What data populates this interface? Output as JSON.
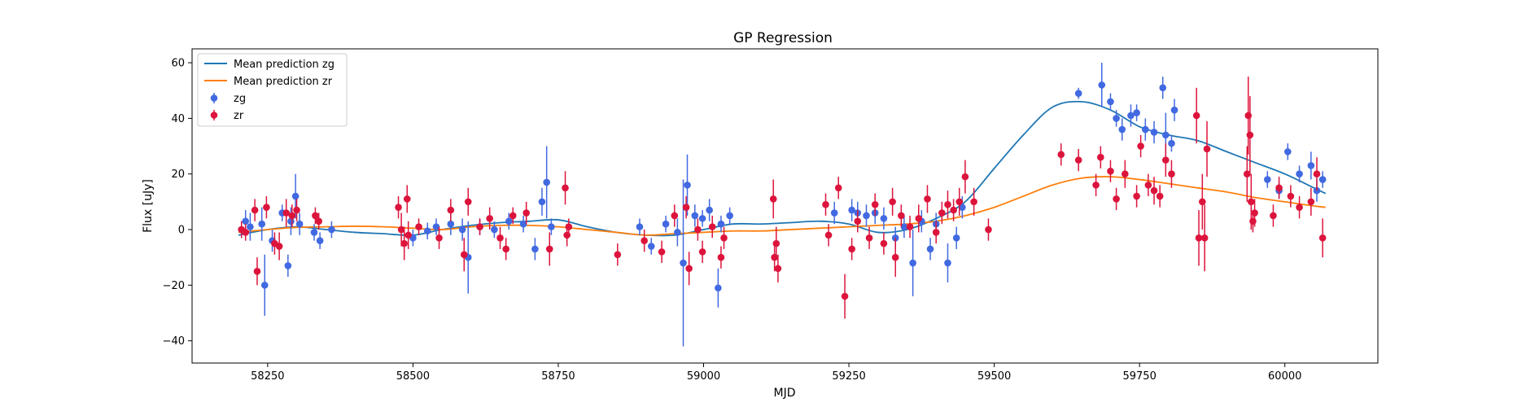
{
  "chart_data": {
    "type": "scatter",
    "title": "GP Regression",
    "xlabel": "MJD",
    "ylabel": "Flux [uJy]",
    "xlim": [
      58120,
      60160
    ],
    "ylim": [
      -48,
      65
    ],
    "x_ticks": [
      58250,
      58500,
      58750,
      59000,
      59250,
      59500,
      59750,
      60000
    ],
    "y_ticks": [
      -40,
      -20,
      0,
      20,
      40,
      60
    ],
    "grid": false,
    "legend": {
      "position": "top-left",
      "entries": [
        "Mean prediction zg",
        "Mean prediction zr",
        "zg",
        "zr"
      ]
    },
    "colors": {
      "zg_points": "#4169e1",
      "zr_points": "#dc143c",
      "zg_line": "#1f77b4",
      "zr_line": "#ff7f0e"
    },
    "lines": [
      {
        "name": "Mean prediction zg",
        "x": [
          58200,
          58250,
          58300,
          58350,
          58400,
          58450,
          58500,
          58550,
          58600,
          58650,
          58700,
          58750,
          58800,
          58850,
          58900,
          58950,
          59000,
          59050,
          59100,
          59150,
          59200,
          59250,
          59300,
          59350,
          59400,
          59450,
          59500,
          59550,
          59600,
          59650,
          59700,
          59750,
          59800,
          59850,
          59900,
          59950,
          60000,
          60050,
          60070
        ],
        "y": [
          -2,
          0,
          1,
          0,
          -1,
          -1.5,
          -2,
          0,
          1.5,
          2.5,
          3,
          3.5,
          1,
          -1,
          -2,
          -2,
          0,
          2,
          2,
          2.5,
          3,
          2,
          -1,
          0,
          4,
          10,
          22,
          34,
          44,
          46,
          43,
          37,
          34,
          32,
          28,
          24,
          20,
          15,
          13
        ]
      },
      {
        "name": "Mean prediction zr",
        "x": [
          58200,
          58250,
          58300,
          58350,
          58400,
          58450,
          58500,
          58550,
          58600,
          58650,
          58700,
          58750,
          58800,
          58850,
          58900,
          58950,
          59000,
          59050,
          59100,
          59150,
          59200,
          59250,
          59300,
          59350,
          59400,
          59450,
          59500,
          59550,
          59600,
          59650,
          59700,
          59750,
          59800,
          59850,
          59900,
          59950,
          60000,
          60050,
          60070
        ],
        "y": [
          -1,
          0,
          0.8,
          1,
          1.2,
          1,
          0.5,
          0,
          1,
          1.5,
          1.5,
          1,
          0,
          -1,
          -2,
          -1.5,
          -1,
          -0.5,
          -0.5,
          0,
          0.5,
          1,
          1.5,
          2,
          3,
          5,
          8,
          12,
          16,
          18.5,
          19,
          18,
          16.5,
          15,
          13.5,
          11.5,
          10,
          8.5,
          8
        ]
      }
    ],
    "series": [
      {
        "name": "zg",
        "points": [
          [
            58205,
            0,
            3
          ],
          [
            58212,
            3,
            4
          ],
          [
            58220,
            1,
            5
          ],
          [
            58240,
            2,
            6
          ],
          [
            58245,
            -20,
            11
          ],
          [
            58258,
            -4,
            4
          ],
          [
            58275,
            6,
            3
          ],
          [
            58285,
            -13,
            4
          ],
          [
            58290,
            3,
            5
          ],
          [
            58298,
            12,
            8
          ],
          [
            58305,
            2,
            4
          ],
          [
            58330,
            -1,
            3
          ],
          [
            58340,
            -4,
            3
          ],
          [
            58360,
            0,
            3
          ],
          [
            58500,
            -3,
            3
          ],
          [
            58525,
            -0.5,
            3
          ],
          [
            58540,
            1,
            3
          ],
          [
            58565,
            2,
            4
          ],
          [
            58585,
            0,
            4
          ],
          [
            58595,
            -10,
            13
          ],
          [
            58615,
            1,
            3
          ],
          [
            58640,
            0,
            3
          ],
          [
            58665,
            3,
            3
          ],
          [
            58690,
            2,
            3
          ],
          [
            58710,
            -7,
            4
          ],
          [
            58722,
            10,
            5
          ],
          [
            58730,
            17,
            13
          ],
          [
            58738,
            1,
            3
          ],
          [
            58890,
            1,
            3
          ],
          [
            58910,
            -6,
            3
          ],
          [
            58935,
            2,
            3
          ],
          [
            58955,
            -1,
            5
          ],
          [
            58965,
            -12,
            30
          ],
          [
            58972,
            16,
            11
          ],
          [
            58985,
            5,
            4
          ],
          [
            58998,
            4,
            3
          ],
          [
            59010,
            7,
            4
          ],
          [
            59025,
            -21,
            7
          ],
          [
            59030,
            2,
            3
          ],
          [
            59045,
            5,
            3
          ],
          [
            59225,
            6,
            4
          ],
          [
            59255,
            7,
            4
          ],
          [
            59265,
            6,
            4
          ],
          [
            59280,
            5,
            4
          ],
          [
            59295,
            6,
            4
          ],
          [
            59310,
            4,
            4
          ],
          [
            59330,
            -3,
            4
          ],
          [
            59345,
            1,
            4
          ],
          [
            59360,
            -12,
            12
          ],
          [
            59375,
            3,
            4
          ],
          [
            59390,
            -7,
            4
          ],
          [
            59400,
            2,
            4
          ],
          [
            59420,
            -12,
            7
          ],
          [
            59435,
            -3,
            4
          ],
          [
            59445,
            8,
            4
          ],
          [
            59645,
            49,
            2
          ],
          [
            59685,
            52,
            8
          ],
          [
            59700,
            46,
            3
          ],
          [
            59710,
            40,
            3
          ],
          [
            59720,
            36,
            4
          ],
          [
            59735,
            41,
            4
          ],
          [
            59745,
            42,
            3
          ],
          [
            59760,
            36,
            4
          ],
          [
            59775,
            35,
            4
          ],
          [
            59790,
            51,
            4
          ],
          [
            59795,
            34,
            8
          ],
          [
            59805,
            31,
            3
          ],
          [
            59810,
            43,
            4
          ],
          [
            59970,
            18,
            3
          ],
          [
            59990,
            14,
            3
          ],
          [
            60005,
            28,
            3
          ],
          [
            60025,
            20,
            3
          ],
          [
            60045,
            23,
            5
          ],
          [
            60055,
            14,
            4
          ],
          [
            60065,
            18,
            3
          ]
        ]
      },
      {
        "name": "zr",
        "points": [
          [
            58205,
            0,
            3
          ],
          [
            58212,
            -1,
            3
          ],
          [
            58228,
            7,
            4
          ],
          [
            58232,
            -15,
            5
          ],
          [
            58248,
            8,
            4
          ],
          [
            58262,
            -5,
            4
          ],
          [
            58270,
            -6,
            5
          ],
          [
            58282,
            6,
            5
          ],
          [
            58292,
            5,
            4
          ],
          [
            58300,
            7,
            4
          ],
          [
            58332,
            5,
            3
          ],
          [
            58338,
            3,
            3
          ],
          [
            58475,
            8,
            4
          ],
          [
            58480,
            0,
            6
          ],
          [
            58485,
            -5,
            6
          ],
          [
            58490,
            11,
            5
          ],
          [
            58492,
            -2,
            5
          ],
          [
            58510,
            1,
            3
          ],
          [
            58545,
            -3,
            4
          ],
          [
            58565,
            7,
            4
          ],
          [
            58588,
            -9,
            6
          ],
          [
            58595,
            10,
            5
          ],
          [
            58615,
            1,
            3
          ],
          [
            58632,
            4,
            4
          ],
          [
            58650,
            -3,
            4
          ],
          [
            58660,
            -7,
            4
          ],
          [
            58672,
            5,
            3
          ],
          [
            58695,
            6,
            4
          ],
          [
            58735,
            -7,
            6
          ],
          [
            58762,
            15,
            6
          ],
          [
            58765,
            -2,
            4
          ],
          [
            58768,
            1,
            3
          ],
          [
            58852,
            -9,
            4
          ],
          [
            58898,
            -4,
            4
          ],
          [
            58928,
            -8,
            4
          ],
          [
            58950,
            5,
            4
          ],
          [
            58970,
            8,
            4
          ],
          [
            58975,
            -14,
            6
          ],
          [
            58990,
            0,
            4
          ],
          [
            58998,
            -8,
            4
          ],
          [
            59015,
            1,
            4
          ],
          [
            59030,
            -10,
            4
          ],
          [
            59035,
            -3,
            4
          ],
          [
            59120,
            11,
            7
          ],
          [
            59122,
            -10,
            5
          ],
          [
            59125,
            -5,
            6
          ],
          [
            59128,
            -14,
            5
          ],
          [
            59210,
            9,
            4
          ],
          [
            59215,
            -2,
            4
          ],
          [
            59232,
            15,
            4
          ],
          [
            59243,
            -24,
            8
          ],
          [
            59255,
            -7,
            4
          ],
          [
            59265,
            3,
            4
          ],
          [
            59285,
            -3,
            4
          ],
          [
            59295,
            9,
            4
          ],
          [
            59310,
            -5,
            4
          ],
          [
            59325,
            10,
            5
          ],
          [
            59330,
            -10,
            7
          ],
          [
            59340,
            5,
            4
          ],
          [
            59355,
            1,
            4
          ],
          [
            59370,
            4,
            5
          ],
          [
            59385,
            11,
            5
          ],
          [
            59400,
            -1,
            4
          ],
          [
            59410,
            6,
            4
          ],
          [
            59420,
            9,
            5
          ],
          [
            59430,
            7,
            4
          ],
          [
            59440,
            10,
            5
          ],
          [
            59450,
            19,
            6
          ],
          [
            59465,
            10,
            5
          ],
          [
            59490,
            0,
            4
          ],
          [
            59615,
            27,
            4
          ],
          [
            59645,
            25,
            4
          ],
          [
            59675,
            16,
            4
          ],
          [
            59683,
            26,
            4
          ],
          [
            59700,
            21,
            4
          ],
          [
            59710,
            11,
            4
          ],
          [
            59725,
            20,
            5
          ],
          [
            59745,
            12,
            4
          ],
          [
            59752,
            30,
            4
          ],
          [
            59765,
            16,
            4
          ],
          [
            59775,
            14,
            5
          ],
          [
            59785,
            12,
            4
          ],
          [
            59795,
            25,
            6
          ],
          [
            59805,
            20,
            5
          ],
          [
            59848,
            41,
            10
          ],
          [
            59852,
            -3,
            10
          ],
          [
            59858,
            10,
            10
          ],
          [
            59862,
            -3,
            12
          ],
          [
            59866,
            29,
            10
          ],
          [
            59935,
            20,
            10
          ],
          [
            59937,
            41,
            14
          ],
          [
            59940,
            34,
            14
          ],
          [
            59942,
            10,
            10
          ],
          [
            59945,
            3,
            4
          ],
          [
            59948,
            6,
            5
          ],
          [
            59980,
            5,
            4
          ],
          [
            59990,
            15,
            4
          ],
          [
            60010,
            12,
            4
          ],
          [
            60025,
            8,
            4
          ],
          [
            60045,
            10,
            5
          ],
          [
            60055,
            20,
            6
          ],
          [
            60065,
            -3,
            7
          ]
        ]
      }
    ]
  }
}
